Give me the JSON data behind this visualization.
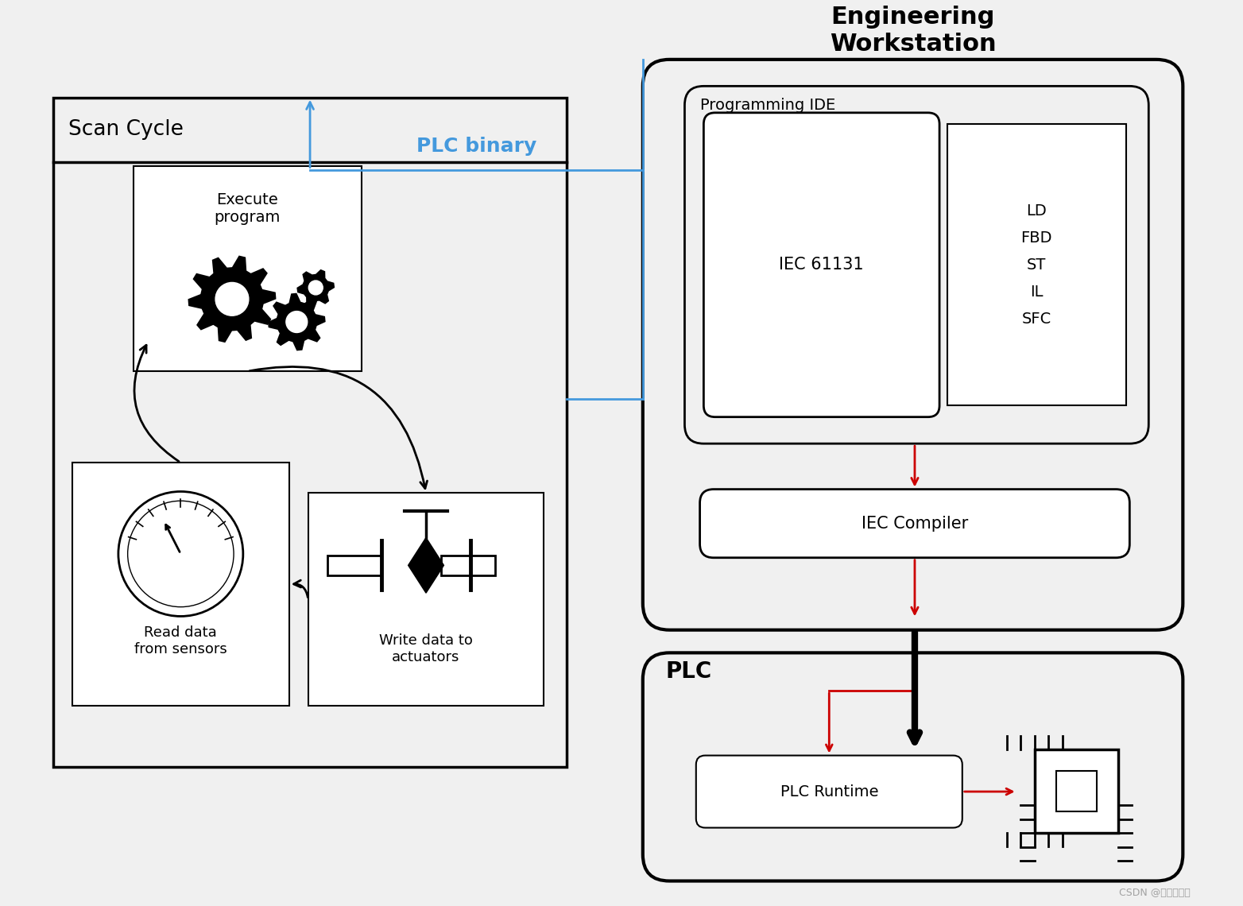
{
  "bg_color": "#f0f0f0",
  "title_engineering": "Engineering\nWorkstation",
  "title_scan_cycle": "Scan Cycle",
  "title_plc": "PLC",
  "label_plc_binary": "PLC binary",
  "label_execute": "Execute\nprogram",
  "label_read": "Read data\nfrom sensors",
  "label_write": "Write data to\nactuators",
  "label_programming_ide": "Programming IDE",
  "label_iec61131": "IEC 61131",
  "label_languages": "LD\nFBD\nST\nIL\nSFC",
  "label_iec_compiler": "IEC Compiler",
  "label_plc_runtime": "PLC Runtime",
  "color_blue": "#4499dd",
  "color_red": "#cc0000",
  "color_black": "#111111",
  "color_white": "#ffffff",
  "watermark": "CSDN @信安科研人"
}
